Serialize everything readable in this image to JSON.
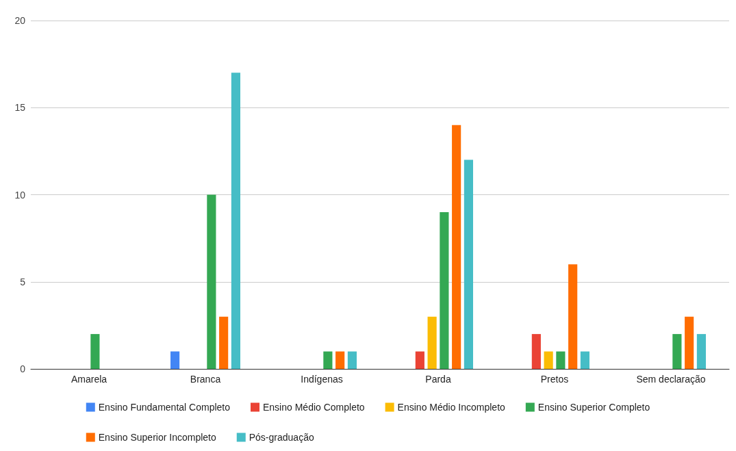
{
  "chart_data": {
    "type": "bar",
    "categories": [
      "Amarela",
      "Branca",
      "Indígenas",
      "Parda",
      "Pretos",
      "Sem declaração"
    ],
    "series": [
      {
        "name": "Ensino Fundamental Completo",
        "color": "#4285f4",
        "values": [
          0,
          1,
          0,
          0,
          0,
          0
        ]
      },
      {
        "name": "Ensino Médio Completo",
        "color": "#ea4335",
        "values": [
          0,
          0,
          0,
          1,
          2,
          0
        ]
      },
      {
        "name": "Ensino Médio Incompleto",
        "color": "#fbbc04",
        "values": [
          0,
          0,
          0,
          3,
          1,
          0
        ]
      },
      {
        "name": "Ensino Superior Completo",
        "color": "#34a853",
        "values": [
          2,
          10,
          1,
          9,
          1,
          2
        ]
      },
      {
        "name": "Ensino Superior Incompleto",
        "color": "#ff6d01",
        "values": [
          0,
          3,
          1,
          14,
          6,
          3
        ]
      },
      {
        "name": "Pós-graduação",
        "color": "#46bdc6",
        "values": [
          0,
          17,
          1,
          12,
          1,
          2
        ]
      }
    ],
    "ylim": [
      0,
      20
    ],
    "yticks": [
      0,
      5,
      10,
      15,
      20
    ],
    "grid": "y",
    "legend": "bottom"
  }
}
